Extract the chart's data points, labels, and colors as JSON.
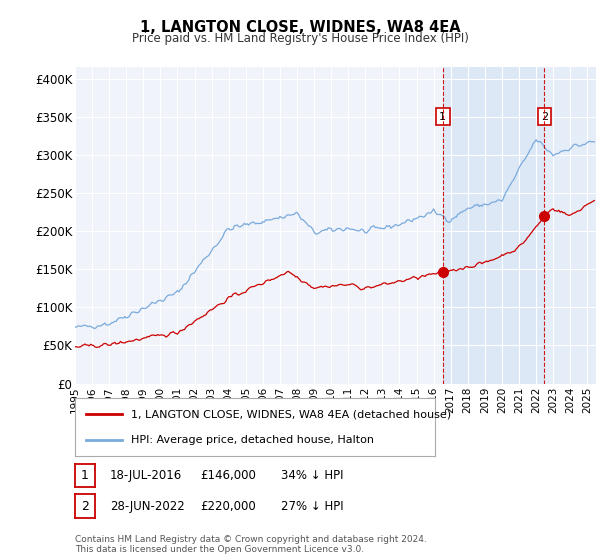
{
  "title": "1, LANGTON CLOSE, WIDNES, WA8 4EA",
  "subtitle": "Price paid vs. HM Land Registry's House Price Index (HPI)",
  "ylabel_ticks": [
    "£0",
    "£50K",
    "£100K",
    "£150K",
    "£200K",
    "£250K",
    "£300K",
    "£350K",
    "£400K"
  ],
  "ytick_values": [
    0,
    50000,
    100000,
    150000,
    200000,
    250000,
    300000,
    350000,
    400000
  ],
  "ylim": [
    0,
    415000
  ],
  "xlim_start": 1995.0,
  "xlim_end": 2025.5,
  "hpi_color": "#7aaadd",
  "hpi_fill_color": "#ccddf5",
  "price_color": "#cc0000",
  "dashed_color": "#cc0000",
  "transaction1_date": 2016.54,
  "transaction1_price": 146000,
  "transaction1_label": "1",
  "transaction2_date": 2022.49,
  "transaction2_price": 220000,
  "transaction2_label": "2",
  "label1_price": 350000,
  "label2_price": 350000,
  "legend_line1": "1, LANGTON CLOSE, WIDNES, WA8 4EA (detached house)",
  "legend_line2": "HPI: Average price, detached house, Halton",
  "note1_label": "1",
  "note1_date": "18-JUL-2016",
  "note1_price": "£146,000",
  "note1_hpi": "34% ↓ HPI",
  "note2_label": "2",
  "note2_date": "28-JUN-2022",
  "note2_price": "£220,000",
  "note2_hpi": "27% ↓ HPI",
  "footer": "Contains HM Land Registry data © Crown copyright and database right 2024.\nThis data is licensed under the Open Government Licence v3.0.",
  "background_color": "#ffffff",
  "plot_bg_color": "#f0f4fa"
}
